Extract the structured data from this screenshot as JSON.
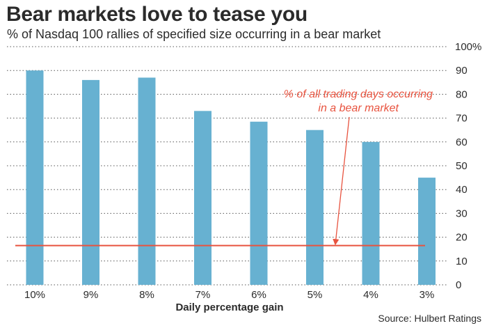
{
  "title": "Bear markets love to tease you",
  "subtitle": "% of Nasdaq 100 rallies of specified size occurring in a bear market",
  "source": "Source: Hulbert Ratings",
  "colors": {
    "bar": "#67b1d1",
    "reference_line": "#e8533f",
    "grid": "#555555"
  },
  "chart_data": {
    "type": "bar",
    "categories": [
      "10%",
      "9%",
      "8%",
      "7%",
      "6%",
      "5%",
      "4%",
      "3%"
    ],
    "values": [
      90,
      86,
      87,
      73,
      68.5,
      65,
      60,
      45
    ],
    "xlabel": "Daily percentage gain",
    "ylabel": "",
    "ylim": [
      0,
      100
    ],
    "yticks": [
      "0",
      "10",
      "20",
      "30",
      "40",
      "50",
      "60",
      "70",
      "80",
      "90",
      "100%"
    ],
    "reference_line": {
      "value": 16.5,
      "label_line1": "% of all trading days occurring",
      "label_line2": "in a bear market"
    },
    "grid": true,
    "grid_style": "dotted"
  }
}
